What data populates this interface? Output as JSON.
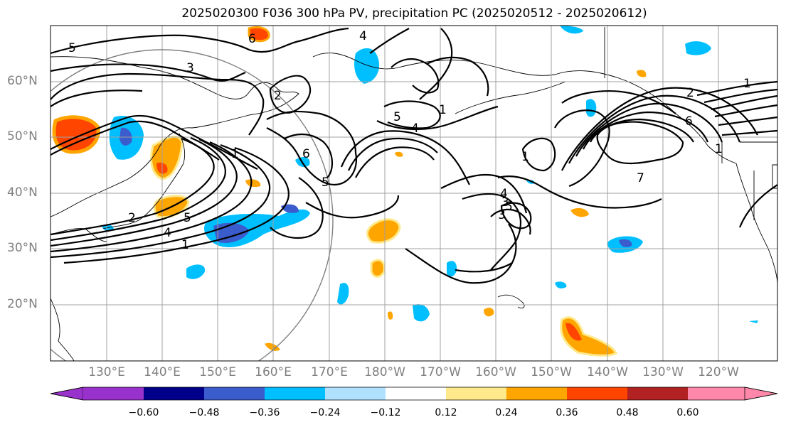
{
  "title": "2025020300 F036 300 hPa PV, precipitation PC (2025020512 - 2025020612)",
  "lat_labels": [
    "60°N",
    "50°N",
    "40°N",
    "30°N",
    "20°N"
  ],
  "lon_labels": [
    "130°E",
    "140°E",
    "150°E",
    "160°E",
    "170°E",
    "180°W",
    "170°W",
    "160°W",
    "150°W",
    "140°W",
    "130°W",
    "120°W"
  ],
  "colorbar": {
    "colors": [
      "#9932cc",
      "#00008b",
      "#3a5ccc",
      "#00bfff",
      "#b0e2ff",
      "#ffffff",
      "#ffe98a",
      "#ffa500",
      "#ff4500",
      "#b22222",
      "#ff88aa"
    ],
    "labels": [
      "−0.60",
      "−0.48",
      "−0.36",
      "−0.24",
      "−0.12",
      "0.12",
      "0.24",
      "0.36",
      "0.48",
      "0.60"
    ]
  },
  "contour_labels": [
    "5",
    "3",
    "4",
    "6",
    "2",
    "1",
    "1",
    "5",
    "6",
    "5",
    "4",
    "1",
    "1",
    "5",
    "4",
    "3",
    "2",
    "1",
    "6",
    "7",
    "1",
    "2",
    "3",
    "4",
    "5"
  ]
}
